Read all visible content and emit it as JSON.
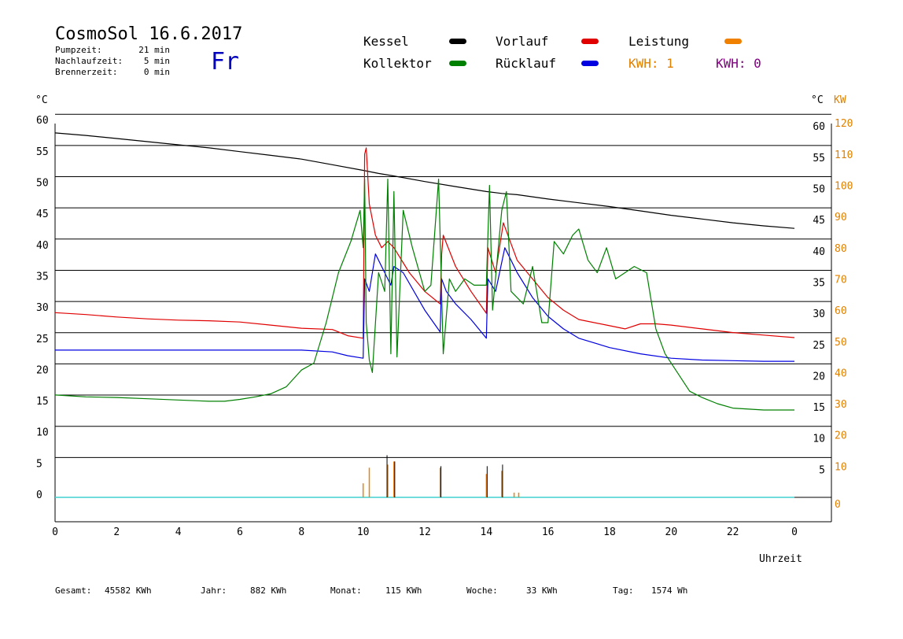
{
  "header": {
    "title": "CosmoSol 16.6.2017",
    "day": "Fr",
    "info": [
      {
        "label": "Pumpzeit:",
        "value": "21 min"
      },
      {
        "label": "Nachlaufzeit:",
        "value": "5 min"
      },
      {
        "label": "Brennerzeit:",
        "value": "0 min"
      }
    ]
  },
  "legend": {
    "items": [
      {
        "label": "Kessel",
        "color": "#000000"
      },
      {
        "label": "Vorlauf",
        "color": "#e00000"
      },
      {
        "label": "Leistung",
        "color": "#f08000"
      },
      {
        "label": "Kollektor",
        "color": "#008000"
      },
      {
        "label": "Rücklauf",
        "color": "#0000e0"
      }
    ],
    "kwh": [
      {
        "label": "KWH: 1",
        "color": "#e08000"
      },
      {
        "label": "KWH: 0",
        "color": "#800080"
      }
    ]
  },
  "axes": {
    "left_unit": "°C",
    "right_unit": "°C",
    "power_unit": "KW",
    "xlabel": "Uhrzeit"
  },
  "stats": [
    {
      "label": "Gesamt:",
      "value": "45582 KWh"
    },
    {
      "label": "Jahr:",
      "value": "882 KWh"
    },
    {
      "label": "Monat:",
      "value": "115 KWh"
    },
    {
      "label": "Woche:",
      "value": "33 KWh"
    },
    {
      "label": "Tag:",
      "value": "1574 Wh"
    }
  ],
  "chart_data": {
    "type": "line",
    "x_range": [
      0,
      24
    ],
    "x_ticks": [
      "0",
      "2",
      "4",
      "6",
      "8",
      "10",
      "12",
      "14",
      "16",
      "18",
      "20",
      "22",
      "0"
    ],
    "y_left": {
      "range": [
        -5,
        60
      ],
      "ticks": [
        "0",
        "5",
        "10",
        "15",
        "20",
        "25",
        "30",
        "35",
        "40",
        "45",
        "50",
        "55",
        "60"
      ]
    },
    "y_right": {
      "ticks": [
        "5",
        "10",
        "15",
        "20",
        "25",
        "30",
        "35",
        "40",
        "45",
        "50",
        "55",
        "60"
      ]
    },
    "y_power": {
      "range": [
        -10,
        120
      ],
      "ticks": [
        "0",
        "10",
        "20",
        "30",
        "40",
        "50",
        "60",
        "70",
        "80",
        "90",
        "100",
        "110",
        "120"
      ]
    },
    "series": [
      {
        "name": "Kessel",
        "color": "#000000",
        "points": [
          [
            0,
            58.4
          ],
          [
            1,
            58
          ],
          [
            2,
            57.5
          ],
          [
            3,
            57
          ],
          [
            4,
            56.5
          ],
          [
            5,
            56
          ],
          [
            6,
            55.4
          ],
          [
            7,
            54.8
          ],
          [
            8,
            54.2
          ],
          [
            9,
            53.3
          ],
          [
            10,
            52.4
          ],
          [
            10.5,
            51.9
          ],
          [
            11,
            51.5
          ],
          [
            12,
            50.6
          ],
          [
            13,
            49.8
          ],
          [
            14,
            49
          ],
          [
            14.5,
            48.7
          ],
          [
            15,
            48.5
          ],
          [
            16,
            47.8
          ],
          [
            17,
            47.2
          ],
          [
            18,
            46.6
          ],
          [
            19,
            45.9
          ],
          [
            20,
            45.2
          ],
          [
            21,
            44.6
          ],
          [
            22,
            44
          ],
          [
            23,
            43.5
          ],
          [
            24,
            43.1
          ]
        ]
      },
      {
        "name": "Vorlauf",
        "color": "#e00000",
        "points": [
          [
            0,
            29.6
          ],
          [
            1,
            29.3
          ],
          [
            2,
            28.9
          ],
          [
            3,
            28.6
          ],
          [
            4,
            28.4
          ],
          [
            5,
            28.3
          ],
          [
            6,
            28.1
          ],
          [
            7,
            27.6
          ],
          [
            8,
            27.1
          ],
          [
            9,
            26.9
          ],
          [
            9.5,
            25.9
          ],
          [
            10,
            25.5
          ],
          [
            10.02,
            36
          ],
          [
            10.05,
            55
          ],
          [
            10.1,
            56
          ],
          [
            10.2,
            47
          ],
          [
            10.4,
            42
          ],
          [
            10.6,
            40
          ],
          [
            10.8,
            41
          ],
          [
            11,
            40
          ],
          [
            11.5,
            36
          ],
          [
            12,
            33
          ],
          [
            12.5,
            31
          ],
          [
            12.55,
            39
          ],
          [
            12.6,
            42
          ],
          [
            13,
            37
          ],
          [
            13.5,
            33
          ],
          [
            14,
            29.5
          ],
          [
            14.05,
            40
          ],
          [
            14.3,
            36
          ],
          [
            14.55,
            44
          ],
          [
            14.7,
            42
          ],
          [
            15,
            38
          ],
          [
            16,
            32
          ],
          [
            16.5,
            30
          ],
          [
            17,
            28.5
          ],
          [
            18,
            27.5
          ],
          [
            18.5,
            27
          ],
          [
            19,
            27.8
          ],
          [
            19.5,
            27.8
          ],
          [
            20,
            27.6
          ],
          [
            21,
            27
          ],
          [
            22,
            26.4
          ],
          [
            23,
            26
          ],
          [
            24,
            25.6
          ]
        ]
      },
      {
        "name": "Rücklauf",
        "color": "#0000e0",
        "points": [
          [
            0,
            23.6
          ],
          [
            2,
            23.6
          ],
          [
            4,
            23.6
          ],
          [
            6,
            23.6
          ],
          [
            7,
            23.6
          ],
          [
            8,
            23.6
          ],
          [
            9,
            23.3
          ],
          [
            9.5,
            22.7
          ],
          [
            10,
            22.3
          ],
          [
            10.05,
            35
          ],
          [
            10.2,
            33
          ],
          [
            10.4,
            39
          ],
          [
            10.7,
            36
          ],
          [
            10.9,
            34
          ],
          [
            11,
            37
          ],
          [
            11.3,
            36
          ],
          [
            12,
            30
          ],
          [
            12.5,
            26.5
          ],
          [
            12.55,
            35
          ],
          [
            12.7,
            33
          ],
          [
            13,
            31
          ],
          [
            13.5,
            28.5
          ],
          [
            14,
            25.5
          ],
          [
            14.05,
            35
          ],
          [
            14.3,
            33
          ],
          [
            14.6,
            40
          ],
          [
            14.8,
            38
          ],
          [
            15,
            36
          ],
          [
            15.5,
            32
          ],
          [
            16,
            29
          ],
          [
            16.5,
            27
          ],
          [
            17,
            25.5
          ],
          [
            18,
            24
          ],
          [
            19,
            23
          ],
          [
            20,
            22.3
          ],
          [
            21,
            22
          ],
          [
            22,
            21.9
          ],
          [
            23,
            21.8
          ],
          [
            24,
            21.8
          ]
        ]
      },
      {
        "name": "Kollektor",
        "color": "#008000",
        "points": [
          [
            0,
            16.4
          ],
          [
            1,
            16.1
          ],
          [
            2,
            16
          ],
          [
            3,
            15.8
          ],
          [
            4,
            15.6
          ],
          [
            5,
            15.4
          ],
          [
            5.5,
            15.4
          ],
          [
            6,
            15.7
          ],
          [
            6.5,
            16.1
          ],
          [
            7,
            16.6
          ],
          [
            7.5,
            17.7
          ],
          [
            8,
            20.4
          ],
          [
            8.4,
            21.5
          ],
          [
            8.8,
            28
          ],
          [
            9.2,
            36
          ],
          [
            9.6,
            41
          ],
          [
            9.9,
            46
          ],
          [
            10,
            40
          ],
          [
            10.05,
            51
          ],
          [
            10.1,
            28
          ],
          [
            10.2,
            22
          ],
          [
            10.3,
            20
          ],
          [
            10.5,
            36
          ],
          [
            10.7,
            33
          ],
          [
            10.8,
            51
          ],
          [
            10.9,
            23
          ],
          [
            11,
            49
          ],
          [
            11.1,
            22.5
          ],
          [
            11.3,
            46
          ],
          [
            11.6,
            40
          ],
          [
            12,
            33
          ],
          [
            12.2,
            34
          ],
          [
            12.45,
            51
          ],
          [
            12.6,
            23
          ],
          [
            12.8,
            35
          ],
          [
            13,
            33
          ],
          [
            13.3,
            35
          ],
          [
            13.6,
            34
          ],
          [
            14,
            34
          ],
          [
            14.1,
            50
          ],
          [
            14.2,
            30
          ],
          [
            14.5,
            46
          ],
          [
            14.65,
            49
          ],
          [
            14.8,
            33
          ],
          [
            15.2,
            31
          ],
          [
            15.5,
            37
          ],
          [
            15.8,
            28
          ],
          [
            16,
            28
          ],
          [
            16.2,
            41
          ],
          [
            16.5,
            39
          ],
          [
            16.8,
            42
          ],
          [
            17,
            43
          ],
          [
            17.3,
            38
          ],
          [
            17.6,
            36
          ],
          [
            17.9,
            40
          ],
          [
            18.2,
            35
          ],
          [
            18.5,
            36
          ],
          [
            18.8,
            37
          ],
          [
            19.2,
            36
          ],
          [
            19.5,
            27
          ],
          [
            19.8,
            23
          ],
          [
            20.2,
            20
          ],
          [
            20.6,
            17
          ],
          [
            21,
            16
          ],
          [
            21.5,
            15
          ],
          [
            22,
            14.3
          ],
          [
            23,
            14
          ],
          [
            24,
            14
          ]
        ]
      }
    ],
    "power_bars": [
      [
        10.0,
        4.5
      ],
      [
        10.2,
        9.5
      ],
      [
        10.8,
        10.5
      ],
      [
        11.0,
        11.5
      ],
      [
        12.5,
        9.5
      ],
      [
        14.0,
        7.5
      ],
      [
        14.5,
        8.5
      ],
      [
        14.9,
        1.5
      ],
      [
        15.05,
        1.5
      ]
    ],
    "kessel_bars": [
      [
        10.75,
        13.5
      ],
      [
        11.0,
        11.5
      ],
      [
        12.5,
        10
      ],
      [
        14.0,
        10
      ],
      [
        14.5,
        10.5
      ]
    ]
  }
}
